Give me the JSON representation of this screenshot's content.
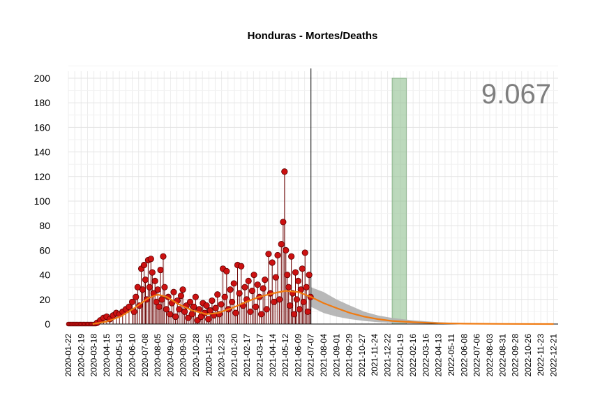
{
  "chart_data": {
    "type": "scatter",
    "title": "Honduras - Mortes/Deaths",
    "total_label": "9.067",
    "xlabel": "",
    "ylabel": "",
    "x_start": "2020-01-22",
    "x_end": "2022-12-31",
    "ylim": [
      0,
      200
    ],
    "yticks": [
      0,
      20,
      40,
      60,
      80,
      100,
      120,
      140,
      160,
      180,
      200
    ],
    "xtick_labels": [
      "2020-01-22",
      "2020-02-19",
      "2020-03-18",
      "2020-04-15",
      "2020-05-13",
      "2020-06-10",
      "2020-07-08",
      "2020-08-05",
      "2020-09-02",
      "2020-09-30",
      "2020-10-28",
      "2020-11-25",
      "2020-12-23",
      "2021-01-20",
      "2021-02-17",
      "2021-03-17",
      "2021-04-14",
      "2021-05-12",
      "2021-06-09",
      "2021-07-07",
      "2021-08-04",
      "2021-09-01",
      "2021-09-29",
      "2021-10-27",
      "2021-11-24",
      "2021-12-22",
      "2022-01-19",
      "2022-02-16",
      "2022-03-16",
      "2022-04-13",
      "2022-05-11",
      "2022-06-08",
      "2022-07-06",
      "2022-08-03",
      "2022-08-31",
      "2022-09-28",
      "2022-10-26",
      "2022-11-23",
      "2022-12-21"
    ],
    "grid": true,
    "last_observed_date": "2021-07-07",
    "highlight_band": {
      "start": "2022-01-01",
      "end": "2022-02-01",
      "color": "#8fbf8f"
    },
    "colors": {
      "points": "#cc1111",
      "point_edge": "#5a0000",
      "smooth": "#f07a10",
      "forecast_band": "#b0b0b0"
    },
    "daily_deaths": [
      {
        "date": "2020-03-25",
        "value": 1
      },
      {
        "date": "2020-04-01",
        "value": 3
      },
      {
        "date": "2020-04-08",
        "value": 5
      },
      {
        "date": "2020-04-15",
        "value": 6
      },
      {
        "date": "2020-04-22",
        "value": 4
      },
      {
        "date": "2020-04-29",
        "value": 7
      },
      {
        "date": "2020-05-06",
        "value": 9
      },
      {
        "date": "2020-05-13",
        "value": 8
      },
      {
        "date": "2020-05-20",
        "value": 10
      },
      {
        "date": "2020-05-27",
        "value": 12
      },
      {
        "date": "2020-06-03",
        "value": 14
      },
      {
        "date": "2020-06-10",
        "value": 18
      },
      {
        "date": "2020-06-14",
        "value": 10
      },
      {
        "date": "2020-06-18",
        "value": 22
      },
      {
        "date": "2020-06-22",
        "value": 30
      },
      {
        "date": "2020-06-26",
        "value": 15
      },
      {
        "date": "2020-06-30",
        "value": 45
      },
      {
        "date": "2020-07-03",
        "value": 28
      },
      {
        "date": "2020-07-06",
        "value": 48
      },
      {
        "date": "2020-07-09",
        "value": 36
      },
      {
        "date": "2020-07-12",
        "value": 20
      },
      {
        "date": "2020-07-15",
        "value": 52
      },
      {
        "date": "2020-07-18",
        "value": 30
      },
      {
        "date": "2020-07-21",
        "value": 53
      },
      {
        "date": "2020-07-24",
        "value": 42
      },
      {
        "date": "2020-07-27",
        "value": 25
      },
      {
        "date": "2020-07-30",
        "value": 35
      },
      {
        "date": "2020-08-02",
        "value": 18
      },
      {
        "date": "2020-08-05",
        "value": 28
      },
      {
        "date": "2020-08-08",
        "value": 14
      },
      {
        "date": "2020-08-11",
        "value": 44
      },
      {
        "date": "2020-08-14",
        "value": 20
      },
      {
        "date": "2020-08-17",
        "value": 55
      },
      {
        "date": "2020-08-20",
        "value": 30
      },
      {
        "date": "2020-08-24",
        "value": 12
      },
      {
        "date": "2020-08-28",
        "value": 22
      },
      {
        "date": "2020-09-01",
        "value": 8
      },
      {
        "date": "2020-09-05",
        "value": 17
      },
      {
        "date": "2020-09-09",
        "value": 26
      },
      {
        "date": "2020-09-13",
        "value": 6
      },
      {
        "date": "2020-09-17",
        "value": 19
      },
      {
        "date": "2020-09-21",
        "value": 12
      },
      {
        "date": "2020-09-25",
        "value": 23
      },
      {
        "date": "2020-09-29",
        "value": 28
      },
      {
        "date": "2020-10-03",
        "value": 10
      },
      {
        "date": "2020-10-07",
        "value": 15
      },
      {
        "date": "2020-10-11",
        "value": 5
      },
      {
        "date": "2020-10-15",
        "value": 18
      },
      {
        "date": "2020-10-19",
        "value": 8
      },
      {
        "date": "2020-10-23",
        "value": 14
      },
      {
        "date": "2020-10-27",
        "value": 22
      },
      {
        "date": "2020-10-31",
        "value": 3
      },
      {
        "date": "2020-11-04",
        "value": 12
      },
      {
        "date": "2020-11-08",
        "value": 6
      },
      {
        "date": "2020-11-12",
        "value": 17
      },
      {
        "date": "2020-11-16",
        "value": 9
      },
      {
        "date": "2020-11-20",
        "value": 15
      },
      {
        "date": "2020-11-24",
        "value": 4
      },
      {
        "date": "2020-11-28",
        "value": 11
      },
      {
        "date": "2020-12-02",
        "value": 19
      },
      {
        "date": "2020-12-06",
        "value": 7
      },
      {
        "date": "2020-12-10",
        "value": 13
      },
      {
        "date": "2020-12-14",
        "value": 24
      },
      {
        "date": "2020-12-18",
        "value": 8
      },
      {
        "date": "2020-12-22",
        "value": 16
      },
      {
        "date": "2020-12-26",
        "value": 45
      },
      {
        "date": "2020-12-30",
        "value": 22
      },
      {
        "date": "2021-01-03",
        "value": 43
      },
      {
        "date": "2021-01-07",
        "value": 12
      },
      {
        "date": "2021-01-11",
        "value": 28
      },
      {
        "date": "2021-01-15",
        "value": 18
      },
      {
        "date": "2021-01-19",
        "value": 33
      },
      {
        "date": "2021-01-23",
        "value": 9
      },
      {
        "date": "2021-01-27",
        "value": 48
      },
      {
        "date": "2021-01-31",
        "value": 25
      },
      {
        "date": "2021-02-04",
        "value": 47
      },
      {
        "date": "2021-02-08",
        "value": 15
      },
      {
        "date": "2021-02-12",
        "value": 30
      },
      {
        "date": "2021-02-16",
        "value": 20
      },
      {
        "date": "2021-02-20",
        "value": 35
      },
      {
        "date": "2021-02-24",
        "value": 10
      },
      {
        "date": "2021-02-28",
        "value": 27
      },
      {
        "date": "2021-03-04",
        "value": 40
      },
      {
        "date": "2021-03-08",
        "value": 14
      },
      {
        "date": "2021-03-12",
        "value": 32
      },
      {
        "date": "2021-03-16",
        "value": 22
      },
      {
        "date": "2021-03-20",
        "value": 8
      },
      {
        "date": "2021-03-24",
        "value": 29
      },
      {
        "date": "2021-03-28",
        "value": 36
      },
      {
        "date": "2021-04-01",
        "value": 12
      },
      {
        "date": "2021-04-05",
        "value": 57
      },
      {
        "date": "2021-04-09",
        "value": 25
      },
      {
        "date": "2021-04-13",
        "value": 50
      },
      {
        "date": "2021-04-17",
        "value": 18
      },
      {
        "date": "2021-04-21",
        "value": 38
      },
      {
        "date": "2021-04-25",
        "value": 56
      },
      {
        "date": "2021-04-29",
        "value": 20
      },
      {
        "date": "2021-05-03",
        "value": 65
      },
      {
        "date": "2021-05-07",
        "value": 83
      },
      {
        "date": "2021-05-10",
        "value": 124
      },
      {
        "date": "2021-05-13",
        "value": 60
      },
      {
        "date": "2021-05-16",
        "value": 40
      },
      {
        "date": "2021-05-19",
        "value": 30
      },
      {
        "date": "2021-05-22",
        "value": 15
      },
      {
        "date": "2021-05-25",
        "value": 55
      },
      {
        "date": "2021-05-28",
        "value": 25
      },
      {
        "date": "2021-05-31",
        "value": 8
      },
      {
        "date": "2021-06-03",
        "value": 42
      },
      {
        "date": "2021-06-06",
        "value": 20
      },
      {
        "date": "2021-06-09",
        "value": 35
      },
      {
        "date": "2021-06-12",
        "value": 12
      },
      {
        "date": "2021-06-15",
        "value": 28
      },
      {
        "date": "2021-06-18",
        "value": 45
      },
      {
        "date": "2021-06-21",
        "value": 18
      },
      {
        "date": "2021-06-24",
        "value": 58
      },
      {
        "date": "2021-06-27",
        "value": 30
      },
      {
        "date": "2021-06-30",
        "value": 10
      },
      {
        "date": "2021-07-03",
        "value": 40
      },
      {
        "date": "2021-07-06",
        "value": 22
      }
    ],
    "smooth_trend": [
      {
        "date": "2020-03-15",
        "value": 0
      },
      {
        "date": "2020-04-15",
        "value": 2
      },
      {
        "date": "2020-05-15",
        "value": 6
      },
      {
        "date": "2020-06-15",
        "value": 13
      },
      {
        "date": "2020-07-15",
        "value": 21
      },
      {
        "date": "2020-08-05",
        "value": 24
      },
      {
        "date": "2020-08-25",
        "value": 22
      },
      {
        "date": "2020-09-20",
        "value": 16
      },
      {
        "date": "2020-10-20",
        "value": 11
      },
      {
        "date": "2020-11-20",
        "value": 8
      },
      {
        "date": "2020-12-15",
        "value": 9
      },
      {
        "date": "2021-01-15",
        "value": 13
      },
      {
        "date": "2021-02-15",
        "value": 18
      },
      {
        "date": "2021-03-15",
        "value": 22
      },
      {
        "date": "2021-04-15",
        "value": 25
      },
      {
        "date": "2021-05-12",
        "value": 27
      },
      {
        "date": "2021-06-10",
        "value": 26
      },
      {
        "date": "2021-07-07",
        "value": 22
      },
      {
        "date": "2021-08-04",
        "value": 17
      },
      {
        "date": "2021-09-01",
        "value": 13
      },
      {
        "date": "2021-10-01",
        "value": 9
      },
      {
        "date": "2021-11-01",
        "value": 6
      },
      {
        "date": "2021-12-01",
        "value": 4
      },
      {
        "date": "2022-01-01",
        "value": 2.5
      },
      {
        "date": "2022-02-16",
        "value": 1.5
      },
      {
        "date": "2022-04-13",
        "value": 0.7
      },
      {
        "date": "2022-06-08",
        "value": 0.3
      },
      {
        "date": "2022-08-31",
        "value": 0.1
      },
      {
        "date": "2022-12-21",
        "value": 0
      }
    ],
    "forecast_band_upper": [
      {
        "date": "2021-07-07",
        "value": 30
      },
      {
        "date": "2021-08-04",
        "value": 26
      },
      {
        "date": "2021-09-01",
        "value": 20
      },
      {
        "date": "2021-10-01",
        "value": 15
      },
      {
        "date": "2021-11-01",
        "value": 10
      },
      {
        "date": "2021-12-01",
        "value": 7
      },
      {
        "date": "2022-01-01",
        "value": 5
      },
      {
        "date": "2022-02-16",
        "value": 3
      },
      {
        "date": "2022-04-13",
        "value": 1.5
      },
      {
        "date": "2022-06-08",
        "value": 0.7
      },
      {
        "date": "2022-08-31",
        "value": 0.3
      },
      {
        "date": "2022-12-21",
        "value": 0.1
      }
    ],
    "forecast_band_lower": [
      {
        "date": "2021-07-07",
        "value": 14
      },
      {
        "date": "2021-08-04",
        "value": 9
      },
      {
        "date": "2021-09-01",
        "value": 6
      },
      {
        "date": "2021-10-01",
        "value": 4
      },
      {
        "date": "2021-11-01",
        "value": 2.5
      },
      {
        "date": "2021-12-01",
        "value": 1.5
      },
      {
        "date": "2022-01-01",
        "value": 1
      },
      {
        "date": "2022-02-16",
        "value": 0.5
      },
      {
        "date": "2022-04-13",
        "value": 0.2
      },
      {
        "date": "2022-06-08",
        "value": 0
      },
      {
        "date": "2022-08-31",
        "value": 0
      },
      {
        "date": "2022-12-21",
        "value": 0
      }
    ]
  }
}
